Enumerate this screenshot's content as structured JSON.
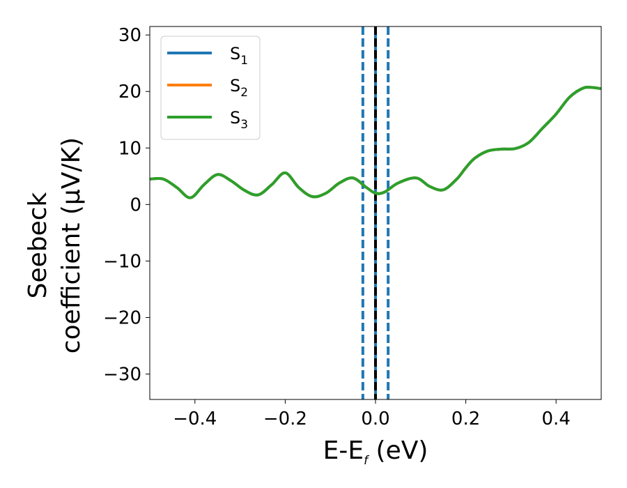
{
  "chart_data": {
    "type": "line",
    "title": "",
    "xlabel": {
      "main": "E-E",
      "sub": "f",
      "unit": " (eV)"
    },
    "ylabel": {
      "line1": "Seebeck",
      "line2": "coefficient  (μV/K)"
    },
    "xlim": [
      -0.5,
      0.5
    ],
    "ylim": [
      -34.5,
      31.5
    ],
    "xticks": [
      -0.4,
      -0.2,
      0.0,
      0.2,
      0.4
    ],
    "xtick_labels": [
      "−0.4",
      "−0.2",
      "0.0",
      "0.2",
      "0.4"
    ],
    "yticks": [
      -30,
      -20,
      -10,
      0,
      10,
      20,
      30
    ],
    "ytick_labels": [
      "−30",
      "−20",
      "−10",
      "0",
      "10",
      "20",
      "30"
    ],
    "grid": false,
    "legend_position": "top-left",
    "series": [
      {
        "name": "S",
        "sub": "1",
        "color": "#1f77b4"
      },
      {
        "name": "S",
        "sub": "2",
        "color": "#ff7f0e"
      },
      {
        "name": "S",
        "sub": "3",
        "color": "#2ca02c"
      }
    ],
    "curve": {
      "x": [
        -0.5,
        -0.47,
        -0.44,
        -0.41,
        -0.38,
        -0.35,
        -0.32,
        -0.29,
        -0.26,
        -0.23,
        -0.2,
        -0.17,
        -0.14,
        -0.11,
        -0.08,
        -0.05,
        -0.02,
        0.0,
        0.02,
        0.05,
        0.09,
        0.12,
        0.15,
        0.18,
        0.2,
        0.22,
        0.25,
        0.28,
        0.31,
        0.34,
        0.37,
        0.4,
        0.43,
        0.46,
        0.48,
        0.5
      ],
      "y": [
        4.5,
        4.5,
        3.0,
        1.2,
        3.5,
        5.3,
        4.2,
        2.5,
        1.7,
        3.5,
        5.6,
        3.0,
        1.4,
        2.0,
        3.8,
        4.7,
        3.0,
        2.0,
        2.2,
        3.8,
        4.7,
        3.2,
        2.6,
        4.5,
        6.5,
        8.2,
        9.5,
        9.8,
        9.9,
        11.0,
        13.5,
        16.0,
        19.0,
        20.6,
        20.7,
        20.5
      ]
    },
    "vlines": [
      {
        "x": -0.028,
        "style": "dashed",
        "color": "#1f77b4"
      },
      {
        "x": 0.0,
        "style": "solid",
        "color": "#1f77b4"
      },
      {
        "x": 0.0,
        "style": "dashed",
        "color": "#000000"
      },
      {
        "x": 0.028,
        "style": "dashed",
        "color": "#1f77b4"
      }
    ]
  }
}
